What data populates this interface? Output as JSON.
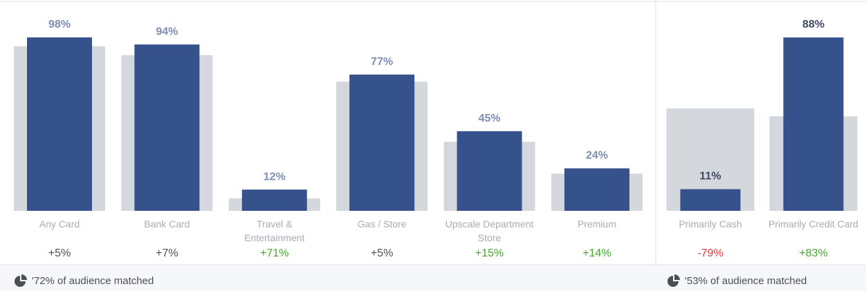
{
  "chart_data": [
    {
      "type": "bar",
      "categories": [
        "Any Card",
        "Bank Card",
        "Travel & Entertainment",
        "Gas / Store",
        "Upscale Department Store",
        "Premium"
      ],
      "series": [
        {
          "color": "#d4d7dc",
          "values": [
            93,
            88,
            7,
            73,
            39,
            21
          ]
        },
        {
          "color": "#36528c",
          "values": [
            98,
            94,
            12,
            77,
            45,
            24
          ],
          "value_labels": [
            "98%",
            "94%",
            "12%",
            "77%",
            "45%",
            "24%"
          ]
        }
      ],
      "value_label_color": "#7e8db3",
      "annotations": [
        "+5%",
        "+7%",
        "+71%",
        "+5%",
        "+15%",
        "+14%"
      ],
      "annotation_colors": [
        "#4b4f56",
        "#4b4f56",
        "#42a82a",
        "#4b4f56",
        "#42a82a",
        "#42a82a"
      ],
      "ylim": [
        0,
        100
      ],
      "footer": "'72% of audience matched"
    },
    {
      "type": "bar",
      "categories": [
        "Primarily Cash",
        "Primarily Credit Card"
      ],
      "series": [
        {
          "color": "#d4d7dc",
          "values": [
            52,
            48
          ]
        },
        {
          "color": "#36528c",
          "values": [
            11,
            88
          ],
          "value_labels": [
            "11%",
            "88%"
          ]
        }
      ],
      "value_label_color": "#3e4a66",
      "annotations": [
        "-79%",
        "+83%"
      ],
      "annotation_colors": [
        "#e0393e",
        "#42a82a"
      ],
      "ylim": [
        0,
        100
      ],
      "footer": "'53% of audience matched"
    }
  ]
}
